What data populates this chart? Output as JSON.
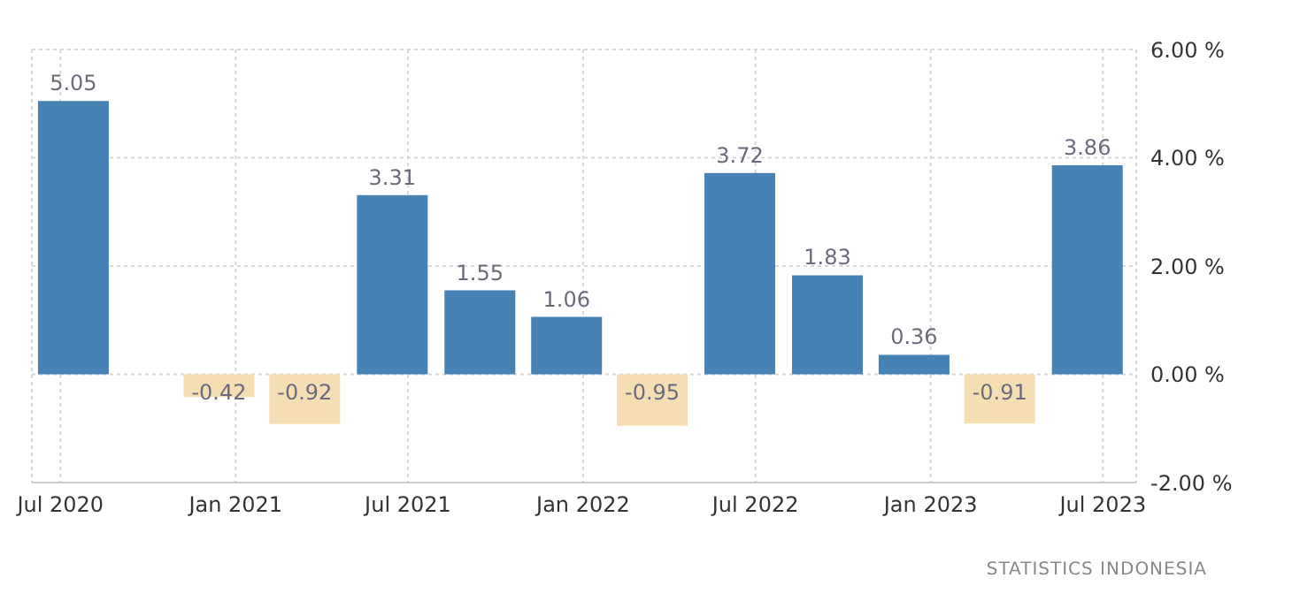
{
  "chart_data": {
    "type": "bar",
    "x": [
      "2020-07-15",
      "2020-12-15",
      "2021-03-15",
      "2021-06-15",
      "2021-09-15",
      "2021-12-15",
      "2022-03-15",
      "2022-06-15",
      "2022-09-15",
      "2022-12-15",
      "2023-03-15",
      "2023-06-15"
    ],
    "values": [
      5.05,
      -0.42,
      -0.92,
      3.31,
      1.55,
      1.06,
      -0.95,
      3.72,
      1.83,
      0.36,
      -0.91,
      3.86
    ],
    "colors": [
      "#4682b4",
      "#f5deb3",
      "#f5deb3",
      "#4682b4",
      "#4682b4",
      "#4682b4",
      "#f5deb3",
      "#4682b4",
      "#4682b4",
      "#4682b4",
      "#f5deb3",
      "#4682b4"
    ],
    "xlim": [
      "2020-06-01",
      "2023-08-05"
    ],
    "xticks": [
      {
        "value": "2020-07",
        "label": "Jul 2020"
      },
      {
        "value": "2021-01",
        "label": "Jan 2021"
      },
      {
        "value": "2021-07",
        "label": "Jul 2021"
      },
      {
        "value": "2022-01",
        "label": "Jan 2022"
      },
      {
        "value": "2022-07",
        "label": "Jul 2022"
      },
      {
        "value": "2023-01",
        "label": "Jan 2023"
      },
      {
        "value": "2023-07",
        "label": "Jul 2023"
      }
    ],
    "ylim": [
      -2,
      6
    ],
    "yticks": [
      {
        "value": 6,
        "label": "6.00 %"
      },
      {
        "value": 4,
        "label": "4.00 %"
      },
      {
        "value": 2,
        "label": "2.00 %"
      },
      {
        "value": 0,
        "label": "0.00 %"
      },
      {
        "value": -2,
        "label": "-2.00 %"
      }
    ],
    "grid": true,
    "data_labels": true,
    "annotations": [
      "STATISTICS INDONESIA"
    ]
  }
}
